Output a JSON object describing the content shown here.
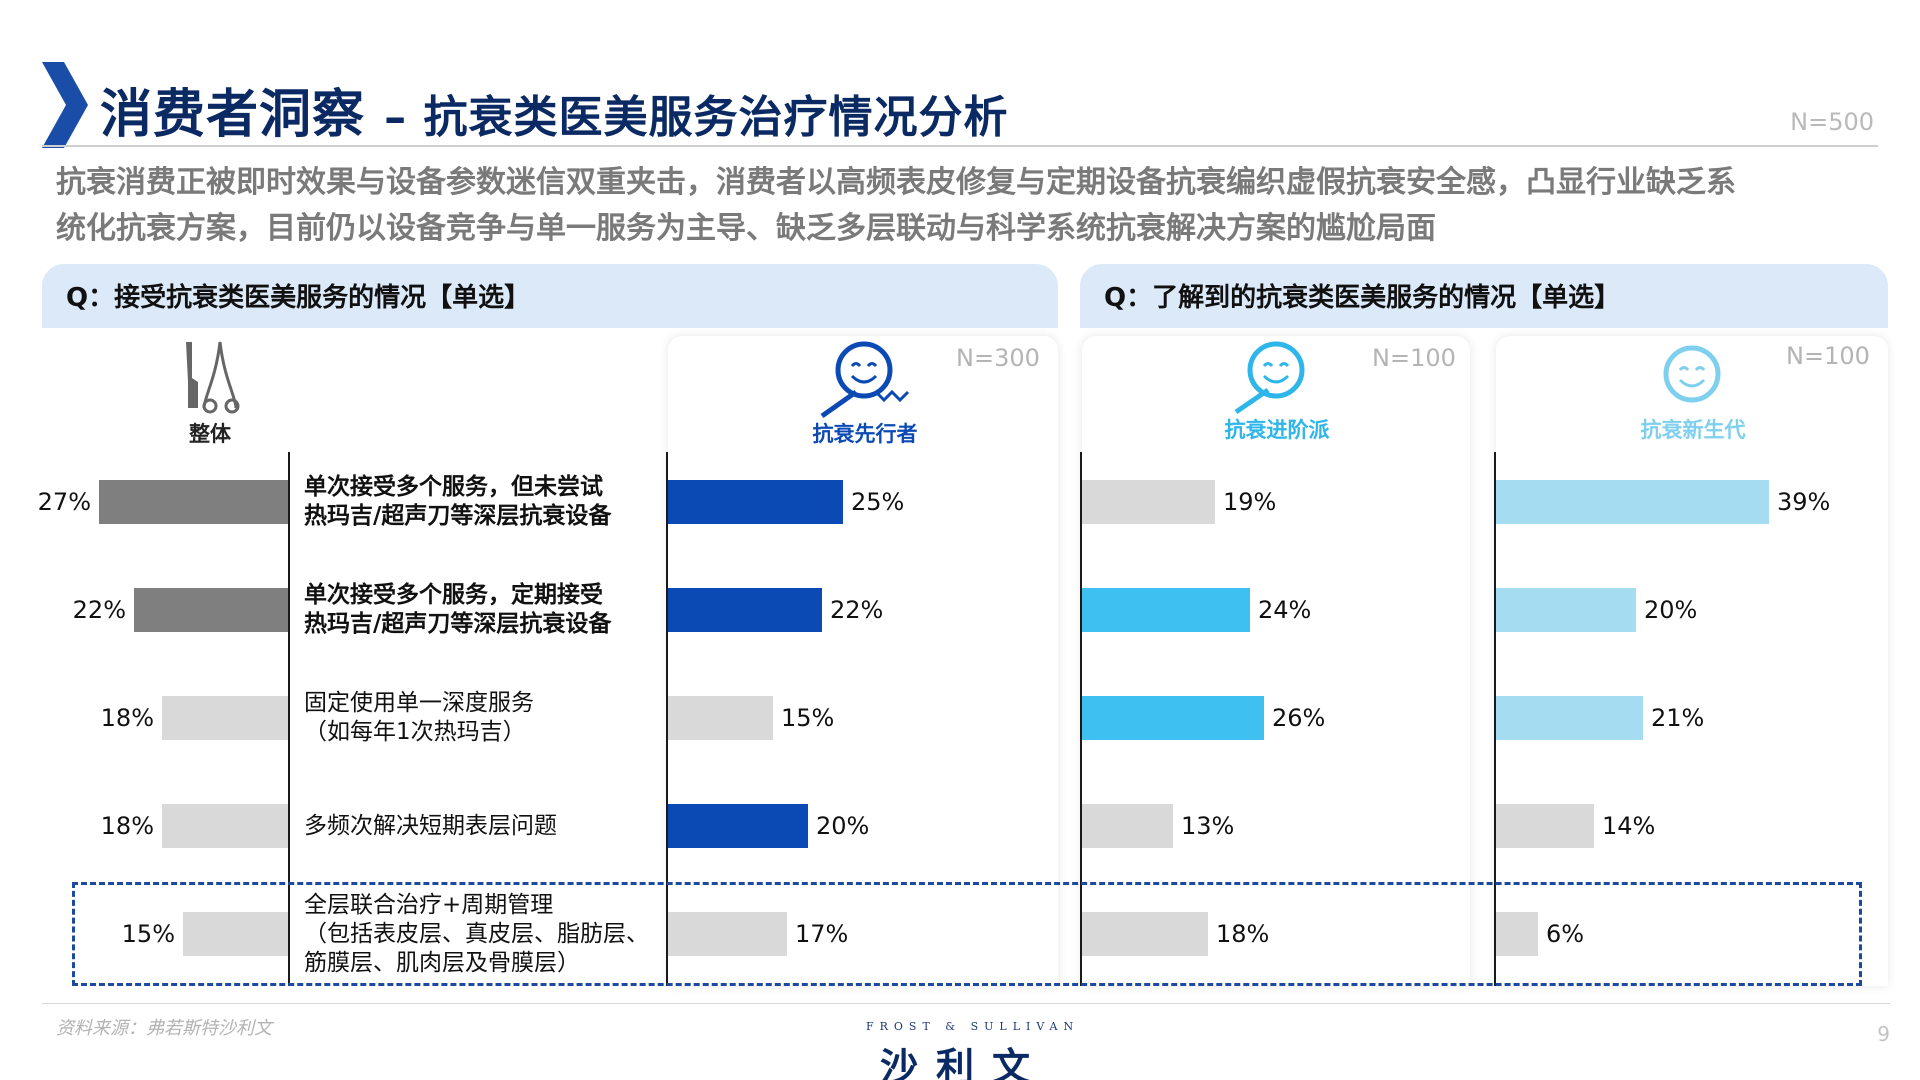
{
  "header": {
    "title_main": "消费者洞察",
    "title_sub": "– 抗衰类医美服务治疗情况分析",
    "n_total": "N=500"
  },
  "subtitle": {
    "line1": "抗衰消费正被即时效果与设备参数迷信双重夹击，消费者以高频表皮修复与定期设备抗衰编织虚假抗衰安全感，凸显行业缺乏系",
    "line2": "统化抗衰方案，目前仍以设备竞争与单一服务为主导、缺乏多层联动与科学系统抗衰解决方案的尴尬局面"
  },
  "questions": {
    "left": "Q：接受抗衰类医美服务的情况【单选】",
    "right": "Q：了解到的抗衰类医美服务的情况【单选】"
  },
  "segments": {
    "overall": {
      "label": "整体",
      "icon": "medical-tools-icon"
    },
    "pioneer": {
      "label": "抗衰先行者",
      "n": "N=300",
      "icon": "smiley-syringe-icon"
    },
    "advanced": {
      "label": "抗衰进阶派",
      "n": "N=100",
      "icon": "smiley-syringe-icon"
    },
    "newgen": {
      "label": "抗衰新生代",
      "n": "N=100",
      "icon": "smiley-icon"
    }
  },
  "chart_data": {
    "type": "bar",
    "orientation": "horizontal",
    "xlim": [
      0,
      100
    ],
    "categories": [
      {
        "lines": [
          "单次接受多个服务，但未尝试",
          "热玛吉/超声刀等深层抗衰设备"
        ],
        "bold": true
      },
      {
        "lines": [
          "单次接受多个服务，定期接受",
          "热玛吉/超声刀等深层抗衰设备"
        ],
        "bold": true
      },
      {
        "lines": [
          "固定使用单一深度服务",
          "（如每年1次热玛吉）"
        ],
        "bold": false
      },
      {
        "lines": [
          "多频次解决短期表层问题"
        ],
        "bold": false
      },
      {
        "lines": [
          "全层联合治疗+周期管理",
          "（包括表皮层、真皮层、脂肪层、",
          "筋膜层、肌肉层及骨膜层）"
        ],
        "bold": false
      }
    ],
    "series": [
      {
        "name": "整体",
        "values": [
          27,
          22,
          18,
          18,
          15
        ],
        "labels": [
          "27%",
          "22%",
          "18%",
          "18%",
          "15%"
        ],
        "colors": [
          "#7f7f7f",
          "#7f7f7f",
          "#d9d9d9",
          "#d9d9d9",
          "#d9d9d9"
        ]
      },
      {
        "name": "抗衰先行者",
        "values": [
          25,
          22,
          15,
          20,
          17
        ],
        "labels": [
          "25%",
          "22%",
          "15%",
          "20%",
          "17%"
        ],
        "colors": [
          "#0b4ab4",
          "#0b4ab4",
          "#d9d9d9",
          "#0b4ab4",
          "#d9d9d9"
        ]
      },
      {
        "name": "抗衰进阶派",
        "values": [
          19,
          24,
          26,
          13,
          18
        ],
        "labels": [
          "19%",
          "24%",
          "26%",
          "13%",
          "18%"
        ],
        "colors": [
          "#d9d9d9",
          "#3ec1f0",
          "#3ec1f0",
          "#d9d9d9",
          "#d9d9d9"
        ]
      },
      {
        "name": "抗衰新生代",
        "values": [
          39,
          20,
          21,
          14,
          6
        ],
        "labels": [
          "39%",
          "20%",
          "21%",
          "14%",
          "6%"
        ],
        "colors": [
          "#a6dcf2",
          "#a6dcf2",
          "#a6dcf2",
          "#d9d9d9",
          "#d9d9d9"
        ]
      }
    ],
    "highlight_category_index": 4
  },
  "colors": {
    "title": "#0b2a63",
    "chevron": "#1a4da8",
    "question_bg": "#dbe9f8",
    "pioneer_label": "#0b4ab4",
    "advanced_label": "#3ec1f0",
    "newgen_label": "#7fcfee"
  },
  "footer": {
    "source": "资料来源：弗若斯特沙利文",
    "logo_en": "FROST & SULLIVAN",
    "logo_cn": "沙利文",
    "page": "9"
  }
}
